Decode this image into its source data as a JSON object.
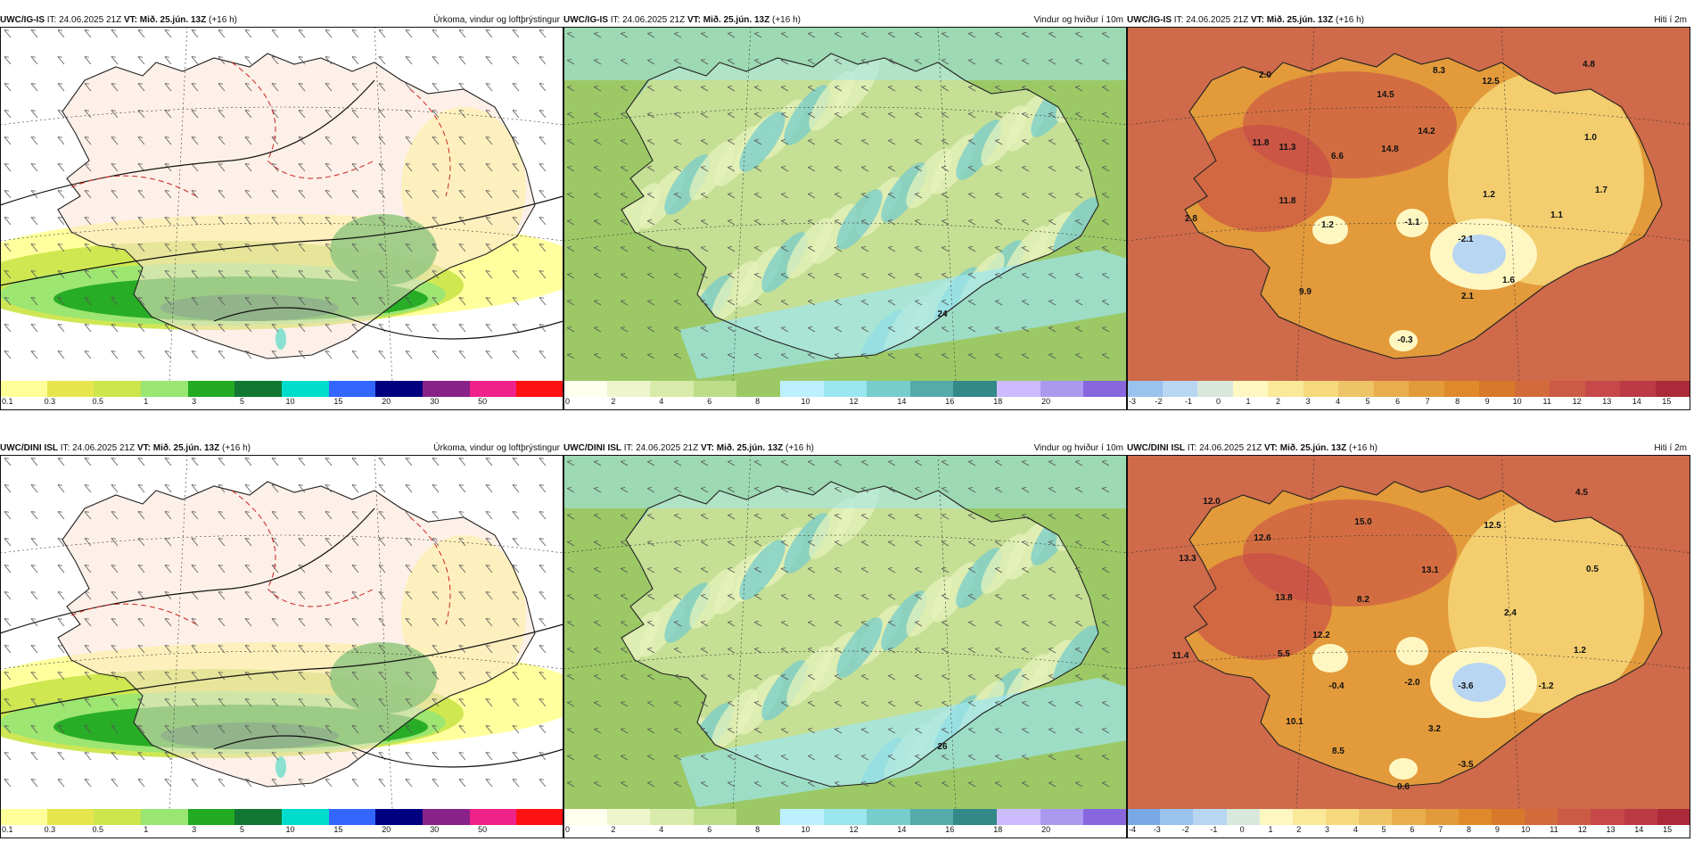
{
  "panels": [
    {
      "model": "UWC/IG-IS",
      "it": "IT: 24.06.2025 21Z",
      "vt": "VT: Mið. 25.jún. 13Z",
      "lead": "(+16 h)",
      "title": "Úrkoma, vindur og loftþrýstingur",
      "kind": "precip",
      "scale_colors": [
        "#ffff99",
        "#e6e64c",
        "#cce64c",
        "#99e673",
        "#22aa22",
        "#117733",
        "#00ddcc",
        "#3366ff",
        "#000080",
        "#882288",
        "#ee2288",
        "#ff1111"
      ],
      "scale_labels": [
        "0.1",
        "0.3",
        "0.5",
        "1",
        "3",
        "5",
        "10",
        "15",
        "20",
        "30",
        "50"
      ],
      "map_labels": []
    },
    {
      "model": "UWC/IG-IS",
      "it": "IT: 24.06.2025 21Z",
      "vt": "VT: Mið. 25.jún. 13Z",
      "lead": "(+16 h)",
      "title": "Vindur og hviður í 10m",
      "kind": "wind",
      "scale_colors": [
        "#ffffee",
        "#eef5cc",
        "#d9ebaa",
        "#bcdd88",
        "#9cc966",
        "#bdf0ff",
        "#99e6ee",
        "#77cccc",
        "#55aaaa",
        "#338888",
        "#ccbbff",
        "#aa99ee",
        "#8866dd"
      ],
      "scale_labels": [
        "0",
        "2",
        "4",
        "6",
        "8",
        "10",
        "12",
        "14",
        "16",
        "18",
        "20"
      ],
      "map_labels": [
        "24"
      ]
    },
    {
      "model": "UWC/IG-IS",
      "it": "IT: 24.06.2025 21Z",
      "vt": "VT: Mið. 25.jún. 13Z",
      "lead": "(+16 h)",
      "title": "Hiti í 2m",
      "kind": "temp",
      "scale_colors": [
        "#99c2ee",
        "#b8d6f2",
        "#d8e8dd",
        "#fff7c2",
        "#fbe99a",
        "#f6d97c",
        "#eec466",
        "#e9ad4c",
        "#e39a3a",
        "#de8a2a",
        "#d8782a",
        "#d26a3a",
        "#cc5a45",
        "#c64848",
        "#bb3a45",
        "#aa2a3a"
      ],
      "scale_labels": [
        "-3",
        "-2",
        "-1",
        "0",
        "1",
        "2",
        "3",
        "4",
        "5",
        "6",
        "7",
        "8",
        "9",
        "10",
        "11",
        "12",
        "13",
        "14",
        "15"
      ],
      "map_labels": [
        "2.0",
        "8.3",
        "12.5",
        "4.8",
        "14.5",
        "11.8",
        "11.3",
        "14.8",
        "14.2",
        "6.6",
        "1.0",
        "1.2",
        "1.7",
        "11.8",
        "2.8",
        "1.2",
        "-1.1",
        "1.1",
        "-2.1",
        "9.9",
        "2.1",
        "1.6",
        "-0.3"
      ]
    },
    {
      "model": "UWC/DINI ISL",
      "it": "IT: 24.06.2025 21Z",
      "vt": "VT: Mið. 25.jún. 13Z",
      "lead": "(+16 h)",
      "title": "Úrkoma, vindur og loftþrýstingur",
      "kind": "precip",
      "scale_colors": [
        "#ffff99",
        "#e6e64c",
        "#cce64c",
        "#99e673",
        "#22aa22",
        "#117733",
        "#00ddcc",
        "#3366ff",
        "#000080",
        "#882288",
        "#ee2288",
        "#ff1111"
      ],
      "scale_labels": [
        "0.1",
        "0.3",
        "0.5",
        "1",
        "3",
        "5",
        "10",
        "15",
        "20",
        "30",
        "50"
      ],
      "map_labels": []
    },
    {
      "model": "UWC/DINI ISL",
      "it": "IT: 24.06.2025 21Z",
      "vt": "VT: Mið. 25.jún. 13Z",
      "lead": "(+16 h)",
      "title": "Vindur og hviður í 10m",
      "kind": "wind",
      "scale_colors": [
        "#ffffee",
        "#eef5cc",
        "#d9ebaa",
        "#bcdd88",
        "#9cc966",
        "#bdf0ff",
        "#99e6ee",
        "#77cccc",
        "#55aaaa",
        "#338888",
        "#ccbbff",
        "#aa99ee",
        "#8866dd"
      ],
      "scale_labels": [
        "0",
        "2",
        "4",
        "6",
        "8",
        "10",
        "12",
        "14",
        "16",
        "18",
        "20"
      ],
      "map_labels": [
        "26"
      ]
    },
    {
      "model": "UWC/DINI ISL",
      "it": "IT: 24.06.2025 21Z",
      "vt": "VT: Mið. 25.jún. 13Z",
      "lead": "(+16 h)",
      "title": "Hiti í 2m",
      "kind": "temp",
      "scale_colors": [
        "#7aa8e6",
        "#99c2ee",
        "#b8d6f2",
        "#d8e8dd",
        "#fff7c2",
        "#fbe99a",
        "#f6d97c",
        "#eec466",
        "#e9ad4c",
        "#e39a3a",
        "#de8a2a",
        "#d8782a",
        "#d26a3a",
        "#cc5a45",
        "#c64848",
        "#bb3a45",
        "#aa2a3a"
      ],
      "scale_labels": [
        "-4",
        "-3",
        "-2",
        "-1",
        "0",
        "1",
        "2",
        "3",
        "4",
        "5",
        "6",
        "7",
        "8",
        "9",
        "10",
        "11",
        "12",
        "13",
        "14",
        "15"
      ],
      "map_labels": [
        "12.0",
        "4.5",
        "12.6",
        "15.0",
        "12.5",
        "13.3",
        "13.1",
        "0.5",
        "13.8",
        "8.2",
        "2.4",
        "12.2",
        "11.4",
        "5.5",
        "1.2",
        "-0.4",
        "-2.0",
        "-3.6",
        "-1.2",
        "10.1",
        "3.2",
        "8.5",
        "-3.5",
        "0.6"
      ]
    }
  ]
}
